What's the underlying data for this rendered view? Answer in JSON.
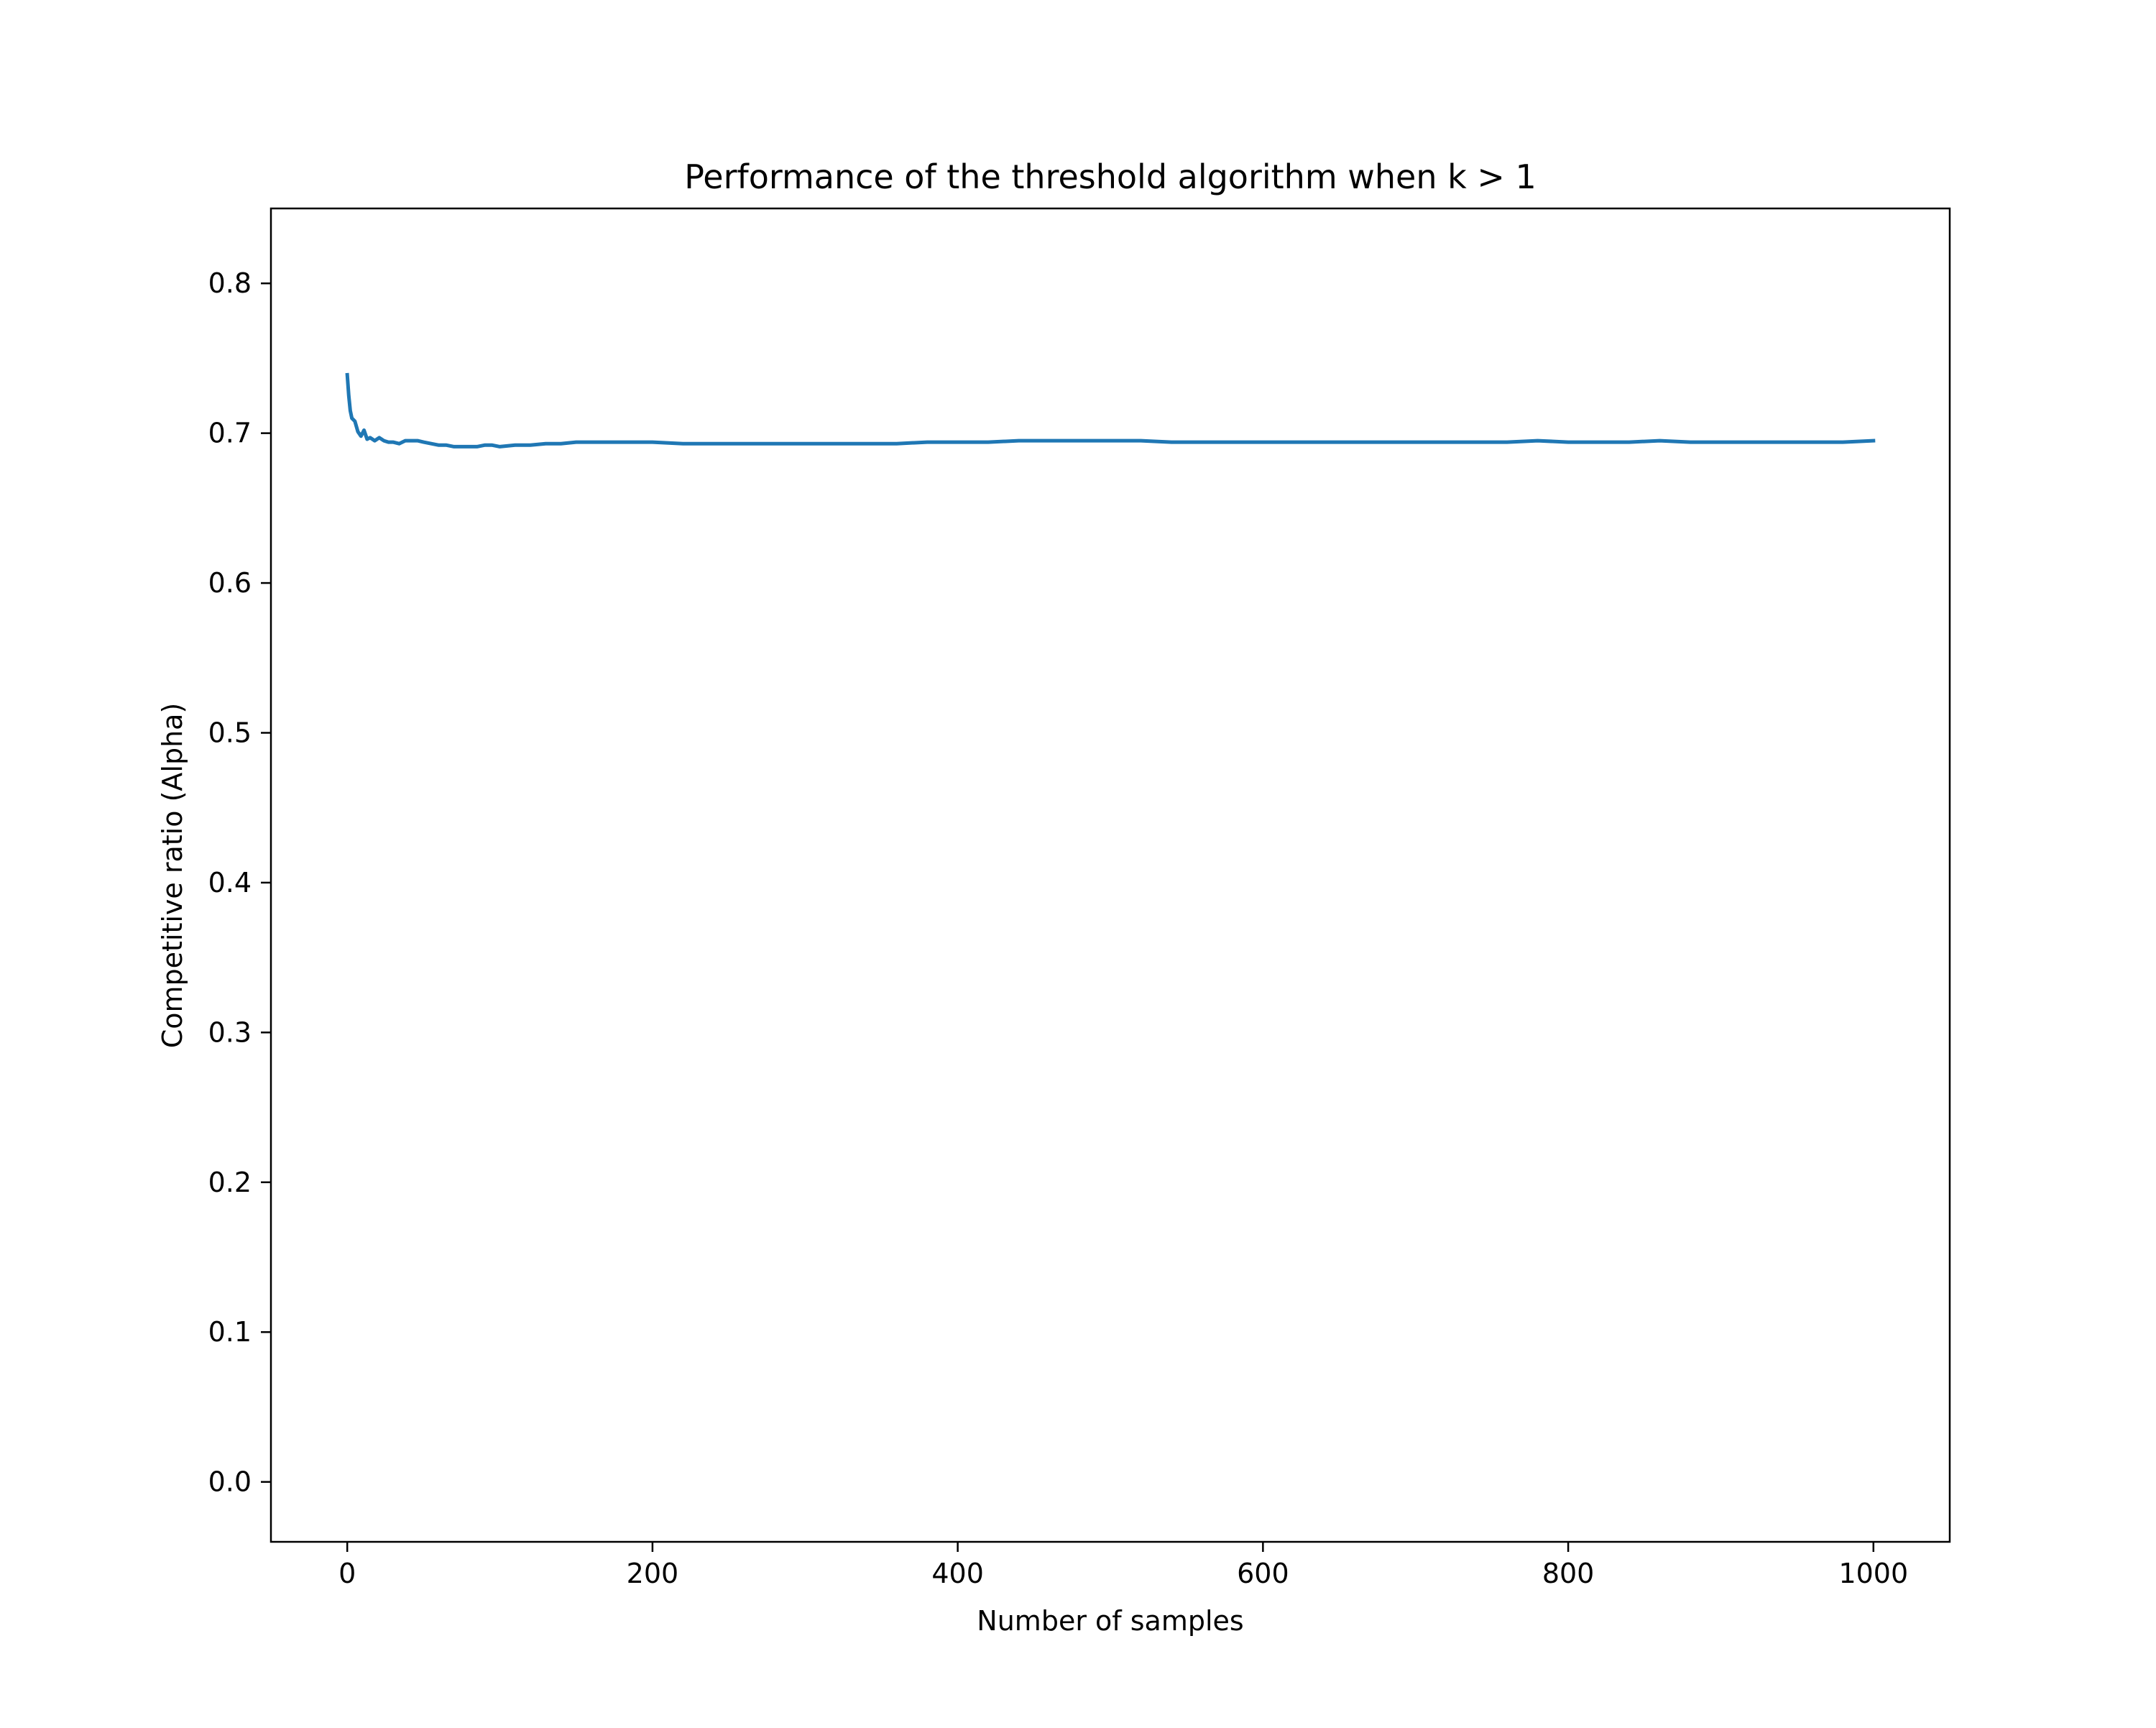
{
  "chart_data": {
    "type": "line",
    "title": "Performance of the threshold algorithm when k > 1",
    "xlabel": "Number of samples",
    "ylabel": "Competitive ratio (Alpha)",
    "xlim": [
      -50,
      1050
    ],
    "ylim": [
      -0.04,
      0.85
    ],
    "xticks": [
      0,
      200,
      400,
      600,
      800,
      1000
    ],
    "xtick_labels": [
      "0",
      "200",
      "400",
      "600",
      "800",
      "1000"
    ],
    "yticks": [
      0.0,
      0.1,
      0.2,
      0.3,
      0.4,
      0.5,
      0.6,
      0.7,
      0.8
    ],
    "ytick_labels": [
      "0.0",
      "0.1",
      "0.2",
      "0.3",
      "0.4",
      "0.5",
      "0.6",
      "0.7",
      "0.8"
    ],
    "grid": false,
    "series": [
      {
        "color": "#1f77b4",
        "x": [
          0,
          1,
          2,
          3,
          5,
          7,
          9,
          11,
          13,
          15,
          18,
          21,
          24,
          27,
          30,
          34,
          38,
          42,
          46,
          50,
          55,
          60,
          65,
          70,
          75,
          80,
          85,
          90,
          95,
          100,
          110,
          120,
          130,
          140,
          150,
          160,
          170,
          180,
          190,
          200,
          220,
          240,
          260,
          280,
          300,
          320,
          340,
          360,
          380,
          400,
          420,
          440,
          460,
          480,
          500,
          520,
          540,
          560,
          580,
          600,
          620,
          640,
          660,
          680,
          700,
          720,
          740,
          760,
          780,
          800,
          820,
          840,
          860,
          880,
          900,
          920,
          940,
          960,
          980,
          1000
        ],
        "y": [
          0.739,
          0.725,
          0.715,
          0.71,
          0.708,
          0.701,
          0.698,
          0.702,
          0.696,
          0.697,
          0.695,
          0.697,
          0.695,
          0.694,
          0.694,
          0.693,
          0.695,
          0.695,
          0.695,
          0.694,
          0.693,
          0.692,
          0.692,
          0.691,
          0.691,
          0.691,
          0.691,
          0.692,
          0.692,
          0.691,
          0.692,
          0.692,
          0.693,
          0.693,
          0.694,
          0.694,
          0.694,
          0.694,
          0.694,
          0.694,
          0.693,
          0.693,
          0.693,
          0.693,
          0.693,
          0.693,
          0.693,
          0.693,
          0.694,
          0.694,
          0.694,
          0.695,
          0.695,
          0.695,
          0.695,
          0.695,
          0.694,
          0.694,
          0.694,
          0.694,
          0.694,
          0.694,
          0.694,
          0.694,
          0.694,
          0.694,
          0.694,
          0.694,
          0.695,
          0.694,
          0.694,
          0.694,
          0.695,
          0.694,
          0.694,
          0.694,
          0.694,
          0.694,
          0.694,
          0.695
        ]
      }
    ]
  }
}
